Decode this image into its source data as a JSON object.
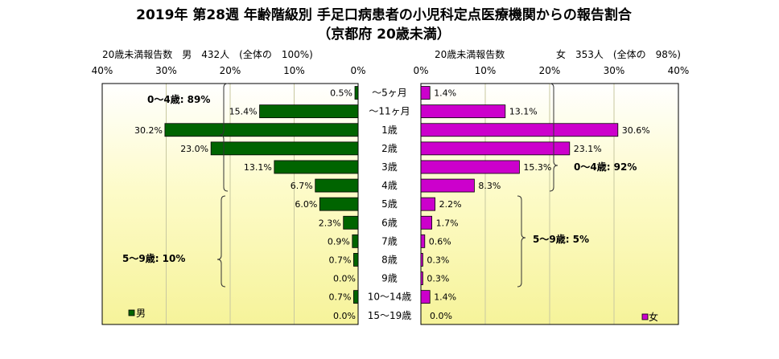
{
  "chart_data": {
    "type": "bar",
    "title": "2019年 第28週 年齢階級別 手足口病患者の小児科定点医療機関からの報告割合",
    "subtitle": "（京都府 20歳未満）",
    "categories": [
      "～5ヶ月",
      "～11ヶ月",
      "1歳",
      "2歳",
      "3歳",
      "4歳",
      "5歳",
      "6歳",
      "7歳",
      "8歳",
      "9歳",
      "10～14歳",
      "15～19歳"
    ],
    "series": [
      {
        "name": "男",
        "color": "#006400",
        "values": [
          0.5,
          15.4,
          30.2,
          23.0,
          13.1,
          6.7,
          6.0,
          2.3,
          0.9,
          0.7,
          0.0,
          0.7,
          0.0
        ],
        "labels": [
          "0.5%",
          "15.4%",
          "30.2%",
          "23.0%",
          "13.1%",
          "6.7%",
          "6.0%",
          "2.3%",
          "0.9%",
          "0.7%",
          "0.0%",
          "0.7%",
          "0.0%"
        ]
      },
      {
        "name": "女",
        "color": "#CC00CC",
        "values": [
          1.4,
          13.1,
          30.6,
          23.1,
          15.3,
          8.3,
          2.2,
          1.7,
          0.6,
          0.3,
          0.3,
          1.4,
          0.0
        ],
        "labels": [
          "1.4%",
          "13.1%",
          "30.6%",
          "23.1%",
          "15.3%",
          "8.3%",
          "2.2%",
          "1.7%",
          "0.6%",
          "0.3%",
          "0.3%",
          "1.4%",
          "0.0%"
        ]
      }
    ],
    "xlim": [
      0,
      40
    ],
    "left_ticks": [
      "40%",
      "30%",
      "20%",
      "10%",
      "0%"
    ],
    "right_ticks": [
      "0%",
      "10%",
      "20%",
      "30%",
      "40%"
    ],
    "left_header": "20歳未満報告数　男　432人　(全体の　100%)",
    "right_header_a": "20歳未満報告数",
    "right_header_b": "女　353人　(全体の　98%)",
    "annotations": {
      "male_0_4": "0～4歳: 89%",
      "male_5_9": "5～9歳: 10%",
      "female_0_4": "0～4歳: 92%",
      "female_5_9": "5～9歳: 5%"
    },
    "legend_male": "男",
    "legend_female": "女",
    "grid": true
  }
}
